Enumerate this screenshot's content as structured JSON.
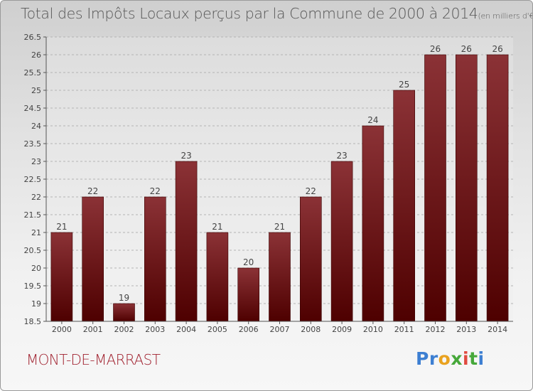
{
  "header": {
    "title": "Total des Impôts Locaux perçus par la Commune de 2000 à 2014",
    "unit": "(en milliers d'€)"
  },
  "footer": {
    "commune": "MONT-DE-MARRAST",
    "logo": {
      "p1": "Pr",
      "p2": "o",
      "p3": "x",
      "p4": "i",
      "p5": "t",
      "p6": "i"
    }
  },
  "colors": {
    "bar_dark": "#4e0000",
    "bar_light": "#8b3236",
    "commune": "#a0202e"
  },
  "chart_data": {
    "type": "bar",
    "title": "Total des Impôts Locaux perçus par la Commune de 2000 à 2014",
    "xlabel": "",
    "ylabel": "en milliers d'€",
    "categories": [
      "2000",
      "2001",
      "2002",
      "2003",
      "2004",
      "2005",
      "2006",
      "2007",
      "2008",
      "2009",
      "2010",
      "2011",
      "2012",
      "2013",
      "2014"
    ],
    "values": [
      21,
      22,
      19,
      22,
      23,
      21,
      20,
      21,
      22,
      23,
      24,
      25,
      26,
      26,
      26
    ],
    "value_labels": [
      "21",
      "22",
      "19",
      "22",
      "23",
      "21",
      "20",
      "21",
      "22",
      "23",
      "24",
      "25",
      "26",
      "26",
      "26"
    ],
    "ylim": [
      18.5,
      26.5
    ],
    "yticks": [
      18.5,
      19,
      19.5,
      20,
      20.5,
      21,
      21.5,
      22,
      22.5,
      23,
      23.5,
      24,
      24.5,
      25,
      25.5,
      26,
      26.5
    ],
    "ytick_labels": [
      "18.5",
      "19",
      "19.5",
      "20",
      "20.5",
      "21",
      "21.5",
      "22",
      "22.5",
      "23",
      "23.5",
      "24",
      "24.5",
      "25",
      "25.5",
      "26",
      "26.5"
    ],
    "grid": "horizontal dashed"
  }
}
